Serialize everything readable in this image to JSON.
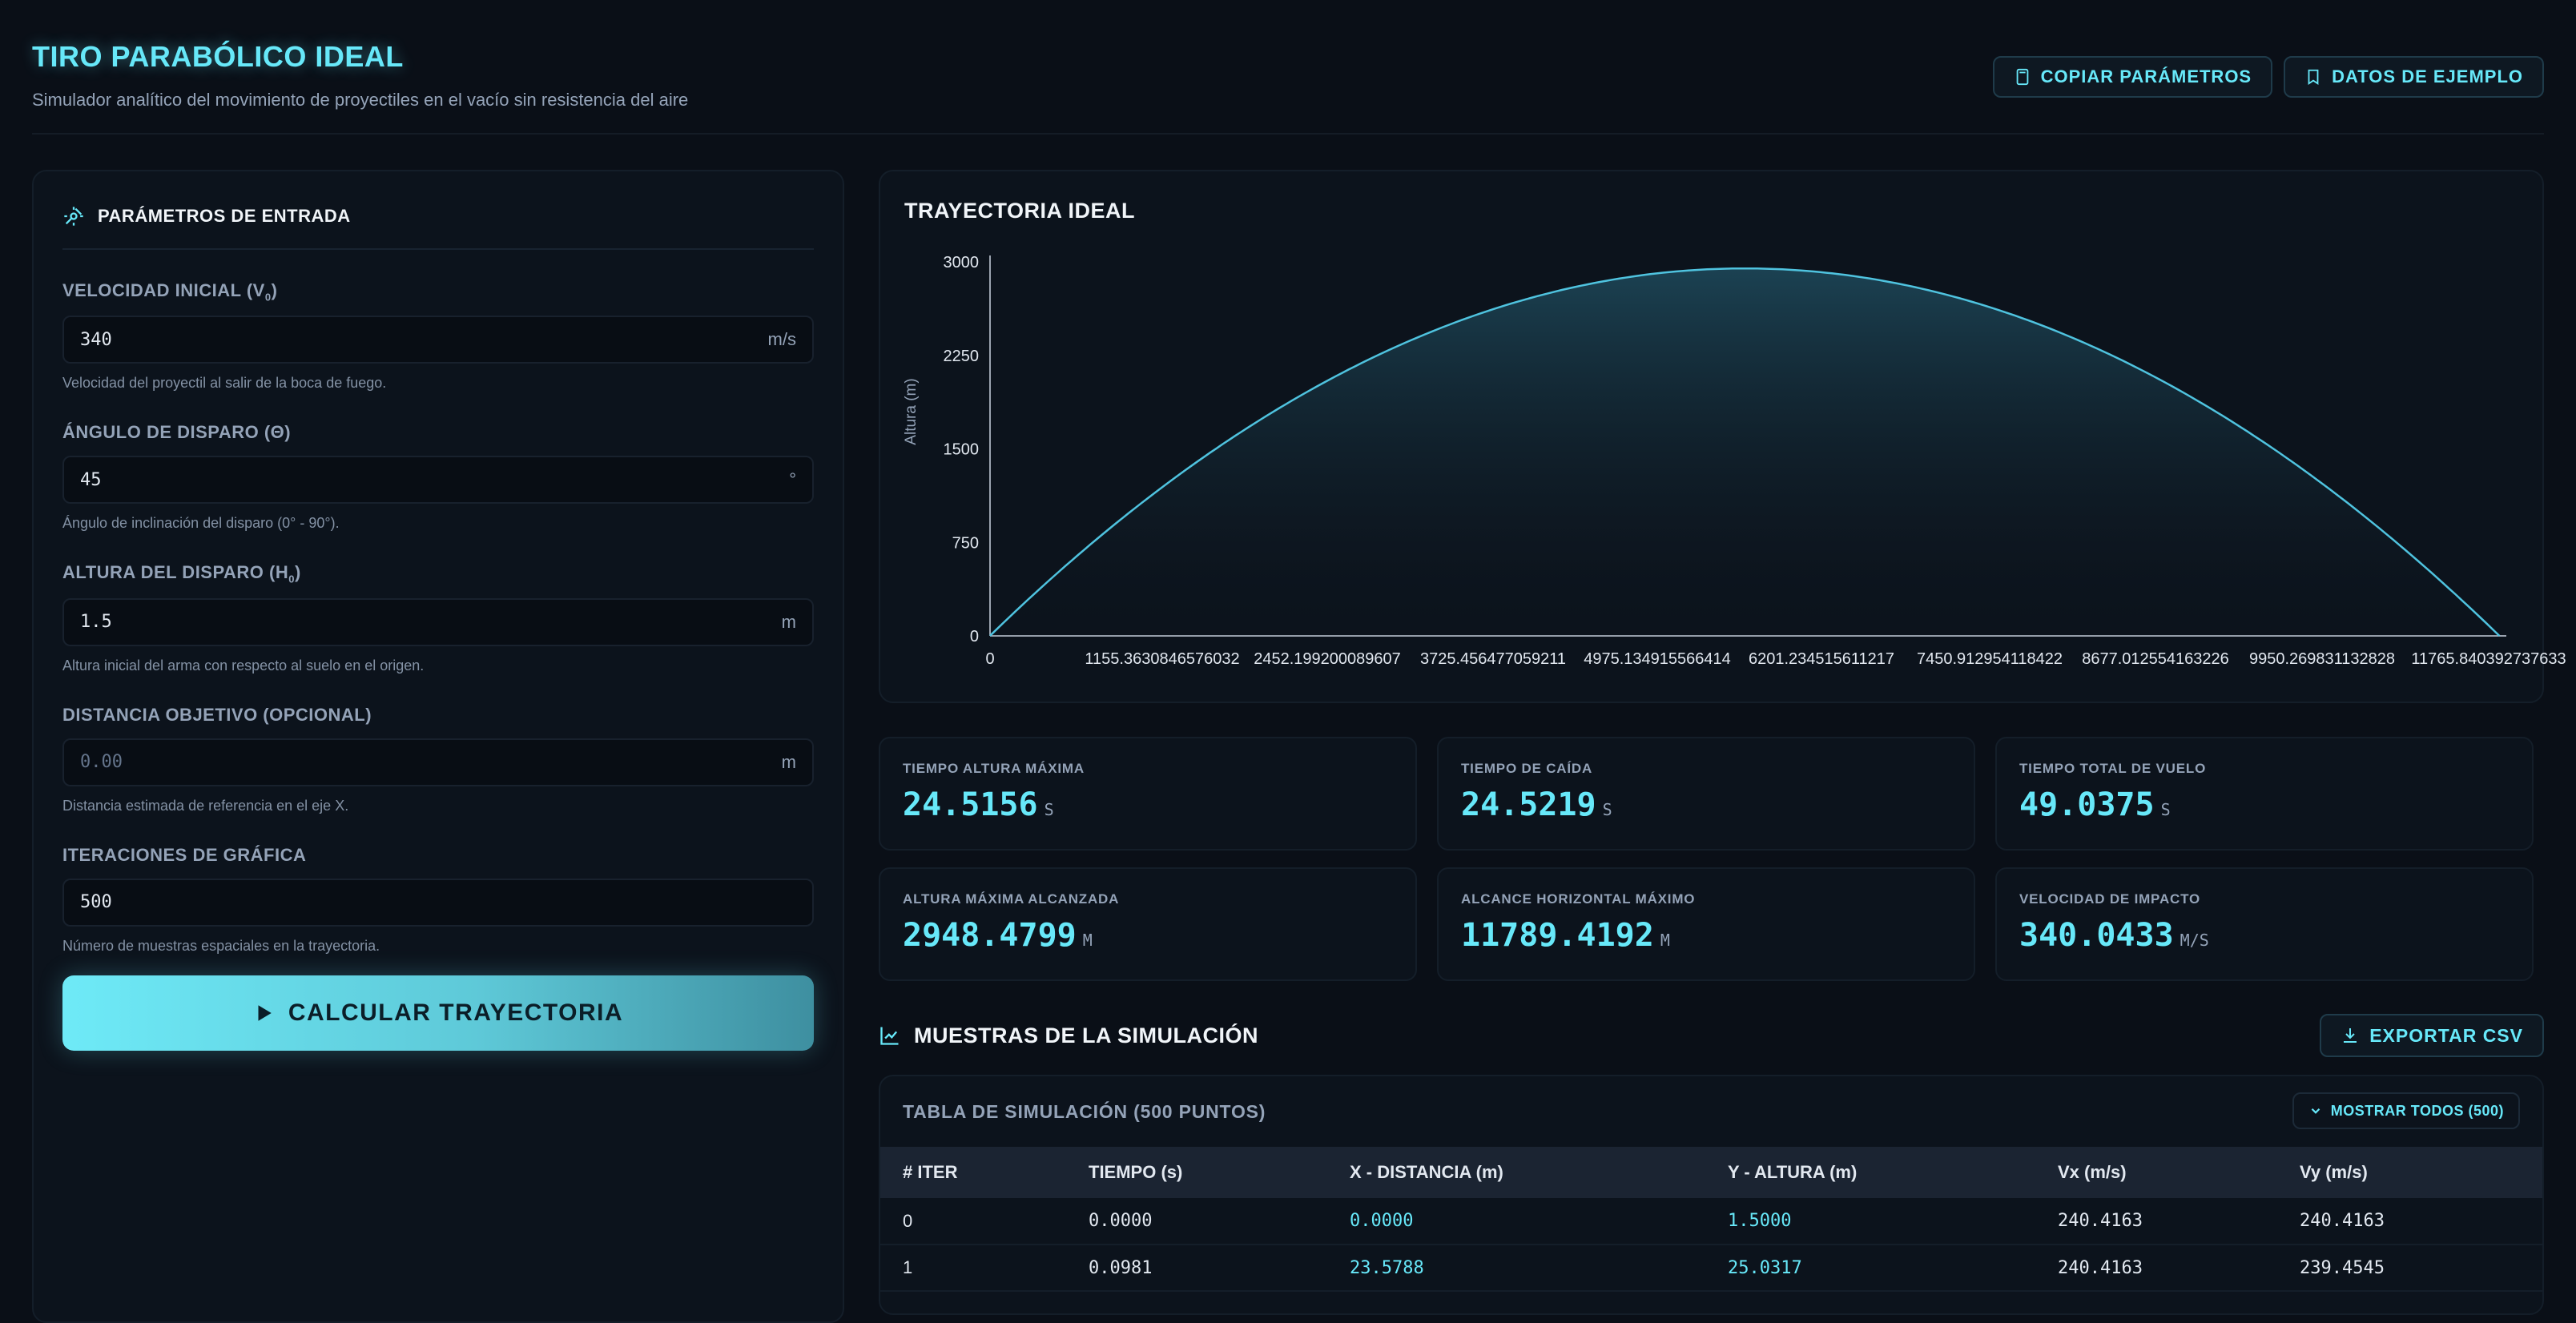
{
  "header": {
    "title": "TIRO PARABÓLICO IDEAL",
    "subtitle": "Simulador analítico del movimiento de proyectiles en el vacío sin resistencia del aire",
    "copy_label": "COPIAR PARÁMETROS",
    "example_label": "DATOS DE EJEMPLO"
  },
  "params": {
    "title": "PARÁMETROS DE ENTRADA",
    "velocity": {
      "label": "VELOCIDAD INICIAL (V",
      "sub": "0",
      "label_end": ")",
      "value": "340",
      "unit": "m/s",
      "hint": "Velocidad del proyectil al salir de la boca de fuego."
    },
    "angle": {
      "label": "ÁNGULO DE DISPARO (Θ)",
      "value": "45",
      "unit": "°",
      "hint": "Ángulo de inclinación del disparo (0° - 90°)."
    },
    "height": {
      "label": "ALTURA DEL DISPARO (H",
      "sub": "0",
      "label_end": ")",
      "value": "1.5",
      "unit": "m",
      "hint": "Altura inicial del arma con respecto al suelo en el origen."
    },
    "distance": {
      "label": "DISTANCIA OBJETIVO (OPCIONAL)",
      "placeholder": "0.00",
      "unit": "m",
      "hint": "Distancia estimada de referencia en el eje X."
    },
    "iterations": {
      "label": "ITERACIONES DE GRÁFICA",
      "value": "500",
      "hint": "Número de muestras espaciales en la trayectoria."
    },
    "calc_label": "CALCULAR TRAYECTORIA"
  },
  "chart": {
    "title": "TRAYECTORIA IDEAL",
    "colors": {
      "line": "#4fc3df",
      "fill_top": "#1e4a5c"
    }
  },
  "chart_data": {
    "type": "area",
    "title": "TRAYECTORIA IDEAL",
    "xlabel": "",
    "ylabel": "Altura (m)",
    "ylim": [
      0,
      3000
    ],
    "xlim": [
      0,
      11789.4192
    ],
    "yticks": [
      "0",
      "750",
      "1500",
      "2250",
      "3000"
    ],
    "yticks_values": [
      0,
      750,
      1500,
      2250,
      3000
    ],
    "xticks": [
      "0",
      "1155.3630846576032",
      "2452.199200089607",
      "3725.456477059211",
      "4975.134915566414",
      "6201.234515611217",
      "7450.912954118422",
      "8677.012554163226",
      "9950.269831132828",
      "11765.840392737633"
    ],
    "v0": 340,
    "angle_deg": 45,
    "h0": 1.5,
    "series": [
      {
        "peak_x": 5894.7,
        "peak_y": 2948.4799,
        "range_x": 11789.4192
      }
    ]
  },
  "stats": [
    {
      "label": "TIEMPO ALTURA MÁXIMA",
      "value": "24.5156",
      "unit": "S"
    },
    {
      "label": "TIEMPO DE CAÍDA",
      "value": "24.5219",
      "unit": "S"
    },
    {
      "label": "TIEMPO TOTAL DE VUELO",
      "value": "49.0375",
      "unit": "S"
    },
    {
      "label": "ALTURA MÁXIMA ALCANZADA",
      "value": "2948.4799",
      "unit": "M"
    },
    {
      "label": "ALCANCE HORIZONTAL MÁXIMO",
      "value": "11789.4192",
      "unit": "M"
    },
    {
      "label": "VELOCIDAD DE IMPACTO",
      "value": "340.0433",
      "unit": "M/S"
    }
  ],
  "samples": {
    "title": "MUESTRAS DE LA SIMULACIÓN",
    "export_label": "EXPORTAR CSV",
    "table_title": "TABLA DE SIMULACIÓN (500 PUNTOS)",
    "show_all_label": "MOSTRAR TODOS (500)",
    "columns": [
      "# ITER",
      "TIEMPO (s)",
      "X - DISTANCIA (m)",
      "Y - ALTURA (m)",
      "Vx (m/s)",
      "Vy (m/s)"
    ],
    "rows": [
      [
        "0",
        "0.0000",
        "0.0000",
        "1.5000",
        "240.4163",
        "240.4163"
      ],
      [
        "1",
        "0.0981",
        "23.5788",
        "25.0317",
        "240.4163",
        "239.4545"
      ]
    ]
  }
}
